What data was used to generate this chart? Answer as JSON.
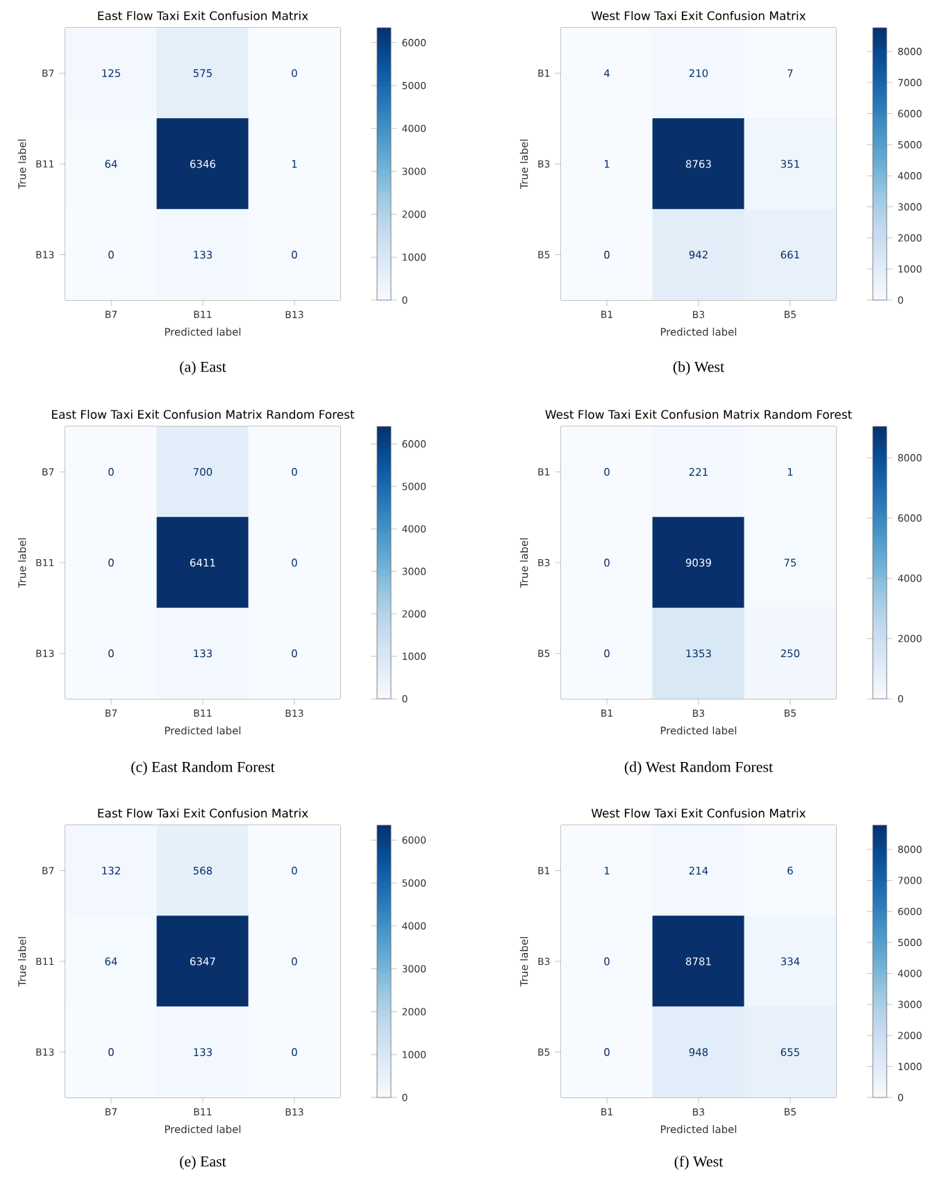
{
  "chart_data": [
    {
      "type": "heatmap",
      "title": "East Flow Taxi Exit Confusion Matrix",
      "xlabel": "Predicted label",
      "ylabel": "True label",
      "categories": [
        "B7",
        "B11",
        "B13"
      ],
      "y_categories": [
        "B7",
        "B11",
        "B13"
      ],
      "cells": [
        [
          125,
          575,
          0
        ],
        [
          64,
          6346,
          1
        ],
        [
          0,
          133,
          0
        ]
      ],
      "data_labels": true,
      "clim": [
        0,
        6346
      ],
      "cticks": [
        0,
        1000,
        2000,
        3000,
        4000,
        5000,
        6000
      ],
      "annotations": [
        "(a) East"
      ]
    },
    {
      "type": "heatmap",
      "title": "West Flow Taxi Exit Confusion Matrix",
      "xlabel": "Predicted label",
      "ylabel": "True label",
      "categories": [
        "B1",
        "B3",
        "B5"
      ],
      "y_categories": [
        "B1",
        "B3",
        "B5"
      ],
      "cells": [
        [
          4,
          210,
          7
        ],
        [
          1,
          8763,
          351
        ],
        [
          0,
          942,
          661
        ]
      ],
      "data_labels": true,
      "clim": [
        0,
        8763
      ],
      "cticks": [
        0,
        1000,
        2000,
        3000,
        4000,
        5000,
        6000,
        7000,
        8000
      ],
      "annotations": [
        "(b) West"
      ]
    },
    {
      "type": "heatmap",
      "title": "East Flow Taxi Exit Confusion Matrix Random Forest",
      "xlabel": "Predicted label",
      "ylabel": "True label",
      "categories": [
        "B7",
        "B11",
        "B13"
      ],
      "y_categories": [
        "B7",
        "B11",
        "B13"
      ],
      "cells": [
        [
          0,
          700,
          0
        ],
        [
          0,
          6411,
          0
        ],
        [
          0,
          133,
          0
        ]
      ],
      "data_labels": true,
      "clim": [
        0,
        6411
      ],
      "cticks": [
        0,
        1000,
        2000,
        3000,
        4000,
        5000,
        6000
      ],
      "annotations": [
        "(c) East Random Forest"
      ]
    },
    {
      "type": "heatmap",
      "title": "West Flow Taxi Exit Confusion Matrix Random Forest",
      "xlabel": "Predicted label",
      "ylabel": "True label",
      "categories": [
        "B1",
        "B3",
        "B5"
      ],
      "y_categories": [
        "B1",
        "B3",
        "B5"
      ],
      "cells": [
        [
          0,
          221,
          1
        ],
        [
          0,
          9039,
          75
        ],
        [
          0,
          1353,
          250
        ]
      ],
      "data_labels": true,
      "clim": [
        0,
        9039
      ],
      "cticks": [
        0,
        2000,
        4000,
        6000,
        8000
      ],
      "annotations": [
        "(d) West Random Forest"
      ]
    },
    {
      "type": "heatmap",
      "title": "East Flow Taxi Exit Confusion Matrix",
      "xlabel": "Predicted label",
      "ylabel": "True label",
      "categories": [
        "B7",
        "B11",
        "B13"
      ],
      "y_categories": [
        "B7",
        "B11",
        "B13"
      ],
      "cells": [
        [
          132,
          568,
          0
        ],
        [
          64,
          6347,
          0
        ],
        [
          0,
          133,
          0
        ]
      ],
      "data_labels": true,
      "clim": [
        0,
        6347
      ],
      "cticks": [
        0,
        1000,
        2000,
        3000,
        4000,
        5000,
        6000
      ],
      "annotations": [
        "(e) East"
      ]
    },
    {
      "type": "heatmap",
      "title": "West Flow Taxi Exit Confusion Matrix",
      "xlabel": "Predicted label",
      "ylabel": "True label",
      "categories": [
        "B1",
        "B3",
        "B5"
      ],
      "y_categories": [
        "B1",
        "B3",
        "B5"
      ],
      "cells": [
        [
          1,
          214,
          6
        ],
        [
          0,
          8781,
          334
        ],
        [
          0,
          948,
          655
        ]
      ],
      "data_labels": true,
      "clim": [
        0,
        8781
      ],
      "cticks": [
        0,
        1000,
        2000,
        3000,
        4000,
        5000,
        6000,
        7000,
        8000
      ],
      "annotations": [
        "(f) West"
      ]
    }
  ]
}
